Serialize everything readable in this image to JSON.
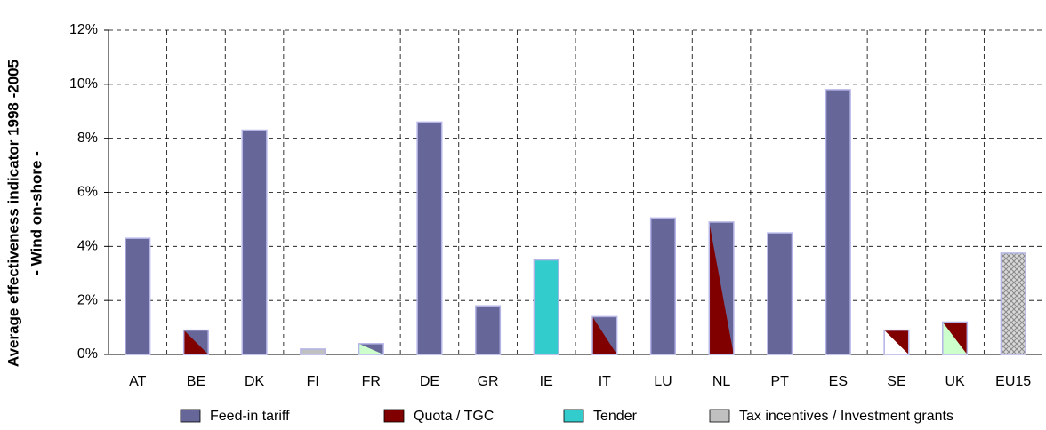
{
  "chart_data": {
    "type": "bar",
    "y_label": [
      "Average effectiveness indicator 1998 -2005",
      "- Wind on-shore -"
    ],
    "categories": [
      "AT",
      "BE",
      "DK",
      "FI",
      "FR",
      "DE",
      "GR",
      "IE",
      "IT",
      "LU",
      "NL",
      "PT",
      "ES",
      "SE",
      "UK",
      "EU15"
    ],
    "values": [
      4.3,
      0.9,
      8.3,
      0.2,
      0.4,
      8.6,
      1.8,
      3.5,
      1.4,
      5.05,
      4.9,
      4.5,
      9.8,
      0.9,
      1.2,
      3.75
    ],
    "bar_colors": [
      [
        "#666699"
      ],
      [
        "#666699",
        "#800000"
      ],
      [
        "#666699"
      ],
      [
        "#c0c0c0"
      ],
      [
        "#666699",
        "#ccffcc"
      ],
      [
        "#666699"
      ],
      [
        "#666699"
      ],
      [
        "#33cccc"
      ],
      [
        "#666699",
        "#800000"
      ],
      [
        "#666699"
      ],
      [
        "#666699",
        "#800000"
      ],
      [
        "#666699"
      ],
      [
        "#666699"
      ],
      [
        "#800000",
        "#ffffff"
      ],
      [
        "#800000",
        "#ccffcc"
      ],
      [
        "hatch"
      ]
    ],
    "ylim": [
      0,
      12
    ],
    "yticks": [
      {
        "value": 0,
        "label": "0%"
      },
      {
        "value": 2,
        "label": "2%"
      },
      {
        "value": 4,
        "label": "4%"
      },
      {
        "value": 6,
        "label": "6%"
      },
      {
        "value": 8,
        "label": "8%"
      },
      {
        "value": 10,
        "label": "10%"
      },
      {
        "value": 12,
        "label": "12%"
      }
    ],
    "grid": true,
    "legend": [
      {
        "name": "Feed-in tariff",
        "color": "#666699"
      },
      {
        "name": "Quota / TGC",
        "color": "#800000"
      },
      {
        "name": "Tender",
        "color": "#33cccc"
      },
      {
        "name": "Tax incentives / Investment grants",
        "color": "#c0c0c0"
      }
    ]
  }
}
